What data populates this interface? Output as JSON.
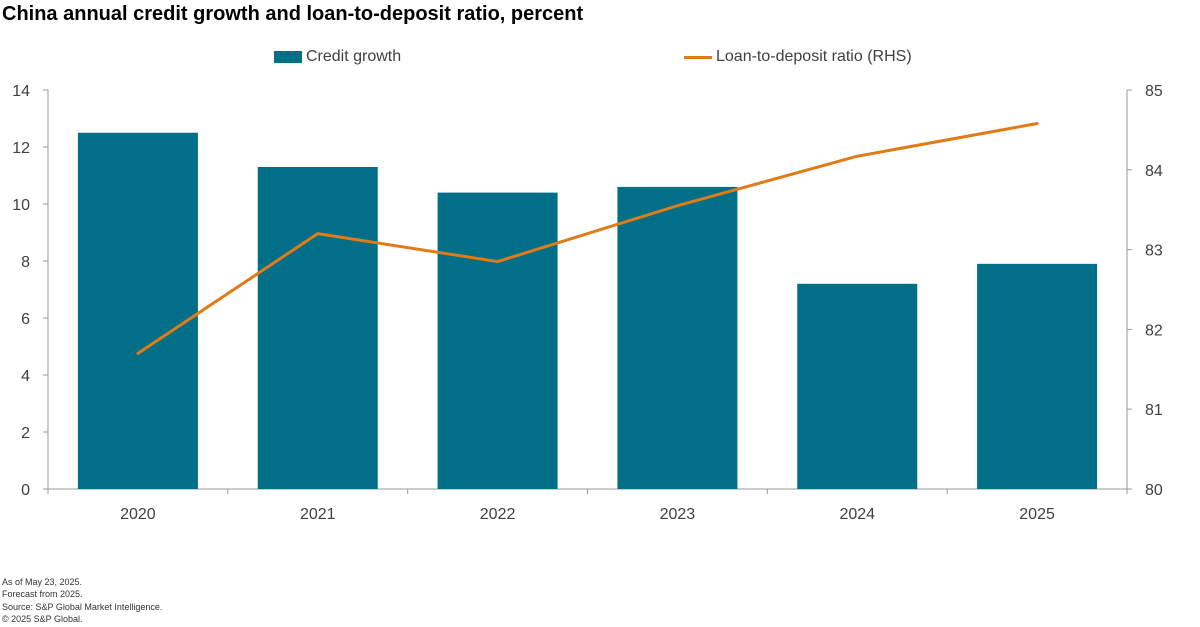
{
  "title": "China annual credit growth and loan-to-deposit ratio, percent",
  "colors": {
    "bar": "#006f87",
    "line": "#e07b17",
    "axis": "#9a9a9a",
    "tick_text": "#404040"
  },
  "legend": {
    "bar_label": "Credit growth",
    "line_label": "Loan-to-deposit ratio (RHS)"
  },
  "chart_data": {
    "type": "bar",
    "categories": [
      "2020",
      "2021",
      "2022",
      "2023",
      "2024",
      "2025"
    ],
    "series": [
      {
        "name": "Credit growth",
        "type": "bar",
        "axis": "left",
        "values": [
          12.5,
          11.3,
          10.4,
          10.6,
          7.2,
          7.9
        ]
      },
      {
        "name": "Loan-to-deposit ratio (RHS)",
        "type": "line",
        "axis": "right",
        "values": [
          81.7,
          83.2,
          82.85,
          83.55,
          84.17,
          84.58
        ]
      }
    ],
    "ylim_left": [
      0,
      14
    ],
    "yticks_left": [
      "0",
      "2",
      "4",
      "6",
      "8",
      "10",
      "12",
      "14"
    ],
    "ylim_right": [
      80,
      85
    ],
    "yticks_right": [
      "80",
      "81",
      "82",
      "83",
      "84",
      "85"
    ],
    "grid": false,
    "legend_position": "top"
  },
  "footnotes": [
    "As of May 23, 2025.",
    "Forecast from 2025.",
    "Source: S&P Global Market Intelligence.",
    "© 2025 S&P Global."
  ]
}
